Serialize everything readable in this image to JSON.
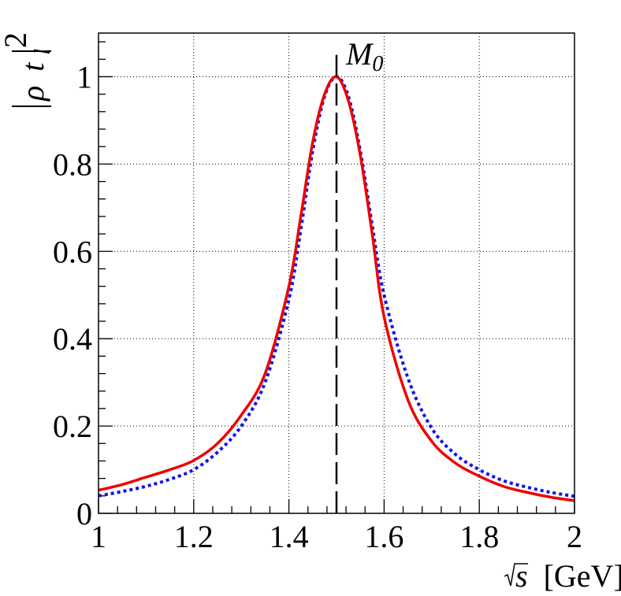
{
  "chart_data": {
    "type": "line",
    "title": "",
    "xlabel": "√s [GeV]",
    "xlabel_parts": {
      "symbol": "s",
      "unit": "[GeV]"
    },
    "ylabel": "|ρ t_l|²",
    "ylabel_parts": {
      "rho": "ρ",
      "t": "t",
      "sub": "l",
      "sup": "2"
    },
    "xlim": [
      1.0,
      2.0
    ],
    "ylim": [
      0.0,
      1.1
    ],
    "grid": true,
    "x_ticks": [
      1.0,
      1.2,
      1.4,
      1.6,
      1.8,
      2.0
    ],
    "x_tick_labels": [
      "1",
      "1.2",
      "1.4",
      "1.6",
      "1.8",
      "2"
    ],
    "y_ticks": [
      0.0,
      0.2,
      0.4,
      0.6,
      0.8,
      1.0
    ],
    "y_tick_labels": [
      "0",
      "0.2",
      "0.4",
      "0.6",
      "0.8",
      "1"
    ],
    "x": [
      1.0,
      1.05,
      1.1,
      1.15,
      1.2,
      1.25,
      1.3,
      1.35,
      1.4,
      1.425,
      1.45,
      1.475,
      1.5,
      1.525,
      1.55,
      1.575,
      1.6,
      1.65,
      1.7,
      1.75,
      1.8,
      1.85,
      1.9,
      1.95,
      2.0
    ],
    "series": [
      {
        "name": "solid",
        "color": "#ee0000",
        "style": "solid",
        "values": [
          0.053,
          0.066,
          0.083,
          0.1,
          0.121,
          0.16,
          0.225,
          0.32,
          0.52,
          0.68,
          0.85,
          0.96,
          1.0,
          0.945,
          0.82,
          0.64,
          0.45,
          0.26,
          0.165,
          0.115,
          0.085,
          0.062,
          0.048,
          0.037,
          0.029
        ]
      },
      {
        "name": "dotted",
        "color": "#1111ee",
        "style": "dotted",
        "values": [
          0.04,
          0.05,
          0.062,
          0.078,
          0.1,
          0.14,
          0.2,
          0.3,
          0.49,
          0.65,
          0.83,
          0.955,
          1.0,
          0.955,
          0.83,
          0.66,
          0.5,
          0.31,
          0.195,
          0.135,
          0.1,
          0.075,
          0.06,
          0.048,
          0.039
        ]
      }
    ],
    "annotations": [
      {
        "text": "M",
        "sub": "0",
        "x": 1.5,
        "type": "vertical-dashed-line",
        "y_range": [
          0.0,
          1.05
        ]
      }
    ]
  }
}
